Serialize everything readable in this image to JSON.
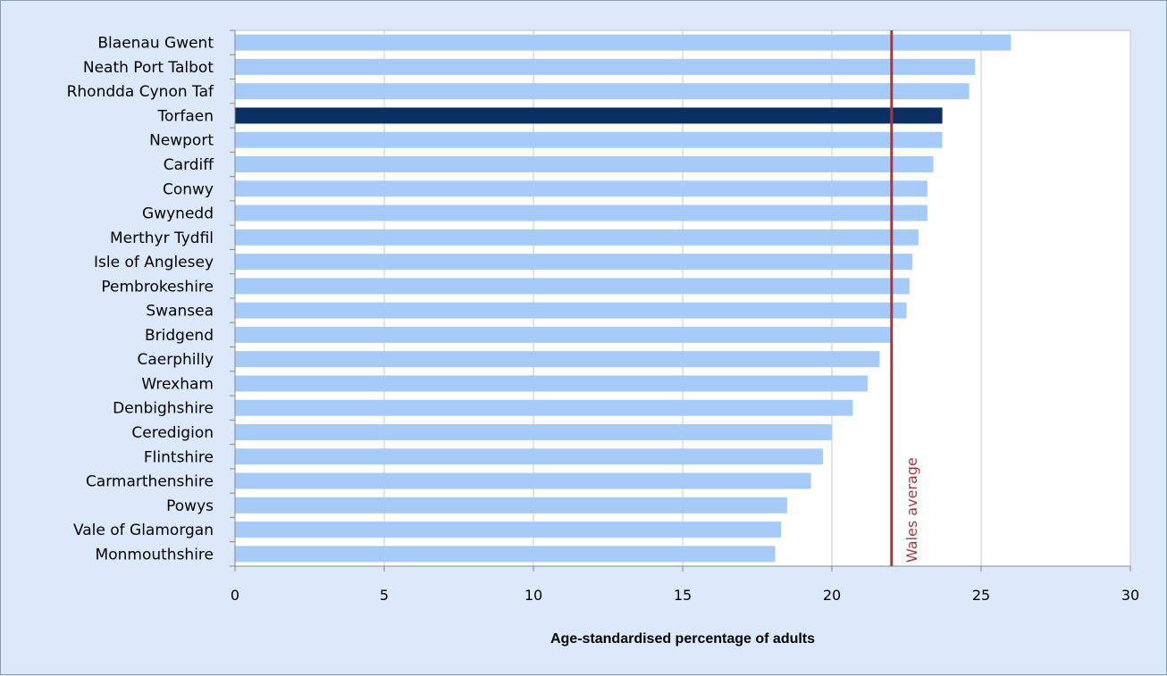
{
  "chart_data": {
    "type": "bar",
    "orientation": "horizontal",
    "categories": [
      "Blaenau Gwent",
      "Neath Port Talbot",
      "Rhondda Cynon Taf",
      "Torfaen",
      "Newport",
      "Cardiff",
      "Conwy",
      "Gwynedd",
      "Merthyr Tydfil",
      "Isle of Anglesey",
      "Pembrokeshire",
      "Swansea",
      "Bridgend",
      "Caerphilly",
      "Wrexham",
      "Denbighshire",
      "Ceredigion",
      "Flintshire",
      "Carmarthenshire",
      "Powys",
      "Vale of Glamorgan",
      "Monmouthshire"
    ],
    "values": [
      26.0,
      24.8,
      24.6,
      23.7,
      23.7,
      23.4,
      23.2,
      23.2,
      22.9,
      22.7,
      22.6,
      22.5,
      22.0,
      21.6,
      21.2,
      20.7,
      20.0,
      19.7,
      19.3,
      18.5,
      18.3,
      18.1
    ],
    "highlight": "Torfaen",
    "colors": {
      "bar": "#a7cbf9",
      "highlight": "#0c2f63",
      "reference": "#a33a3a",
      "grid": "#c8c8c8",
      "plot_bg": "#ffffff"
    },
    "xlabel": "Age-standardised percentage of adults",
    "xlim": [
      0,
      30
    ],
    "xticks": [
      0,
      5,
      10,
      15,
      20,
      25,
      30
    ],
    "grid": true,
    "reference_line": {
      "value": 22.0,
      "label": "Wales average"
    }
  }
}
